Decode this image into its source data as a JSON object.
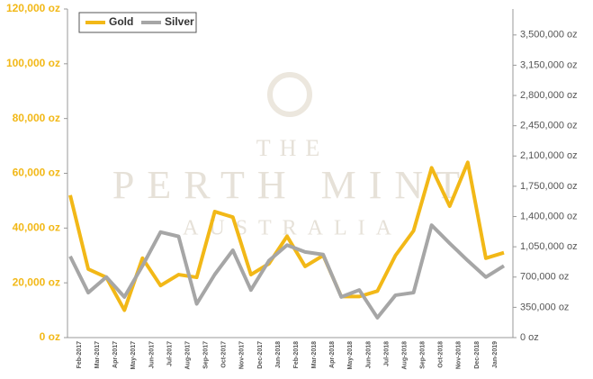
{
  "chart_data": {
    "type": "line",
    "watermark": [
      "THE",
      "PERTH MINT",
      "AUSTRALIA"
    ],
    "categories": [
      null,
      "Feb-2017",
      "Mar-2017",
      "Apr-2017",
      "May-2017",
      "Jun-2017",
      "Jul-2017",
      "Aug-2017",
      "Sep-2017",
      "Oct-2017",
      "Nov-2017",
      "Dec-2017",
      "Jan-2018",
      "Feb-2018",
      "Mar-2018",
      "Apr-2018",
      "May-2018",
      "Jun-2018",
      "Jul-2018",
      "Aug-2018",
      "Sep-2018",
      "Oct-2018",
      "Nov-2018",
      "Dec-2018",
      "Jan-2019"
    ],
    "series": [
      {
        "name": "Gold",
        "color": "#f2b817",
        "values": [
          52000,
          25000,
          22000,
          10000,
          29000,
          19000,
          23000,
          22000,
          46000,
          44000,
          23000,
          27000,
          37000,
          26000,
          30000,
          15000,
          15000,
          17000,
          30000,
          39000,
          62000,
          48000,
          64000,
          29000,
          31000
        ]
      },
      {
        "name": "Silver",
        "color": "#a6a6a6",
        "axis": "y2",
        "values": [
          940000,
          520000,
          700000,
          470000,
          830000,
          1220000,
          1170000,
          390000,
          730000,
          1010000,
          550000,
          890000,
          1070000,
          990000,
          960000,
          470000,
          550000,
          230000,
          490000,
          520000,
          1300000,
          1090000,
          890000,
          700000,
          830000
        ]
      }
    ],
    "ylim": [
      0,
      120000
    ],
    "yticks": [
      {
        "value": 0,
        "label": "0 oz"
      },
      {
        "value": 20000,
        "label": "20,000 oz"
      },
      {
        "value": 40000,
        "label": "40,000 oz"
      },
      {
        "value": 60000,
        "label": "60,000 oz"
      },
      {
        "value": 80000,
        "label": "80,000 oz"
      },
      {
        "value": 100000,
        "label": "100,000 oz"
      },
      {
        "value": 120000,
        "label": "120,000 oz"
      }
    ],
    "y2lim": [
      0,
      3800000
    ],
    "y2ticks": [
      {
        "value": 0,
        "label": "0 oz"
      },
      {
        "value": 350000,
        "label": "350,000 oz"
      },
      {
        "value": 700000,
        "label": "700,000 oz"
      },
      {
        "value": 1050000,
        "label": "1,050,000 oz"
      },
      {
        "value": 1400000,
        "label": "1,400,000 oz"
      },
      {
        "value": 1750000,
        "label": "1,750,000 oz"
      },
      {
        "value": 2100000,
        "label": "2,100,000 oz"
      },
      {
        "value": 2450000,
        "label": "2,450,000 oz"
      },
      {
        "value": 2800000,
        "label": "2,800,000 oz"
      },
      {
        "value": 3150000,
        "label": "3,150,000 oz"
      },
      {
        "value": 3500000,
        "label": "3,500,000 oz"
      }
    ],
    "legend": "top-left"
  }
}
